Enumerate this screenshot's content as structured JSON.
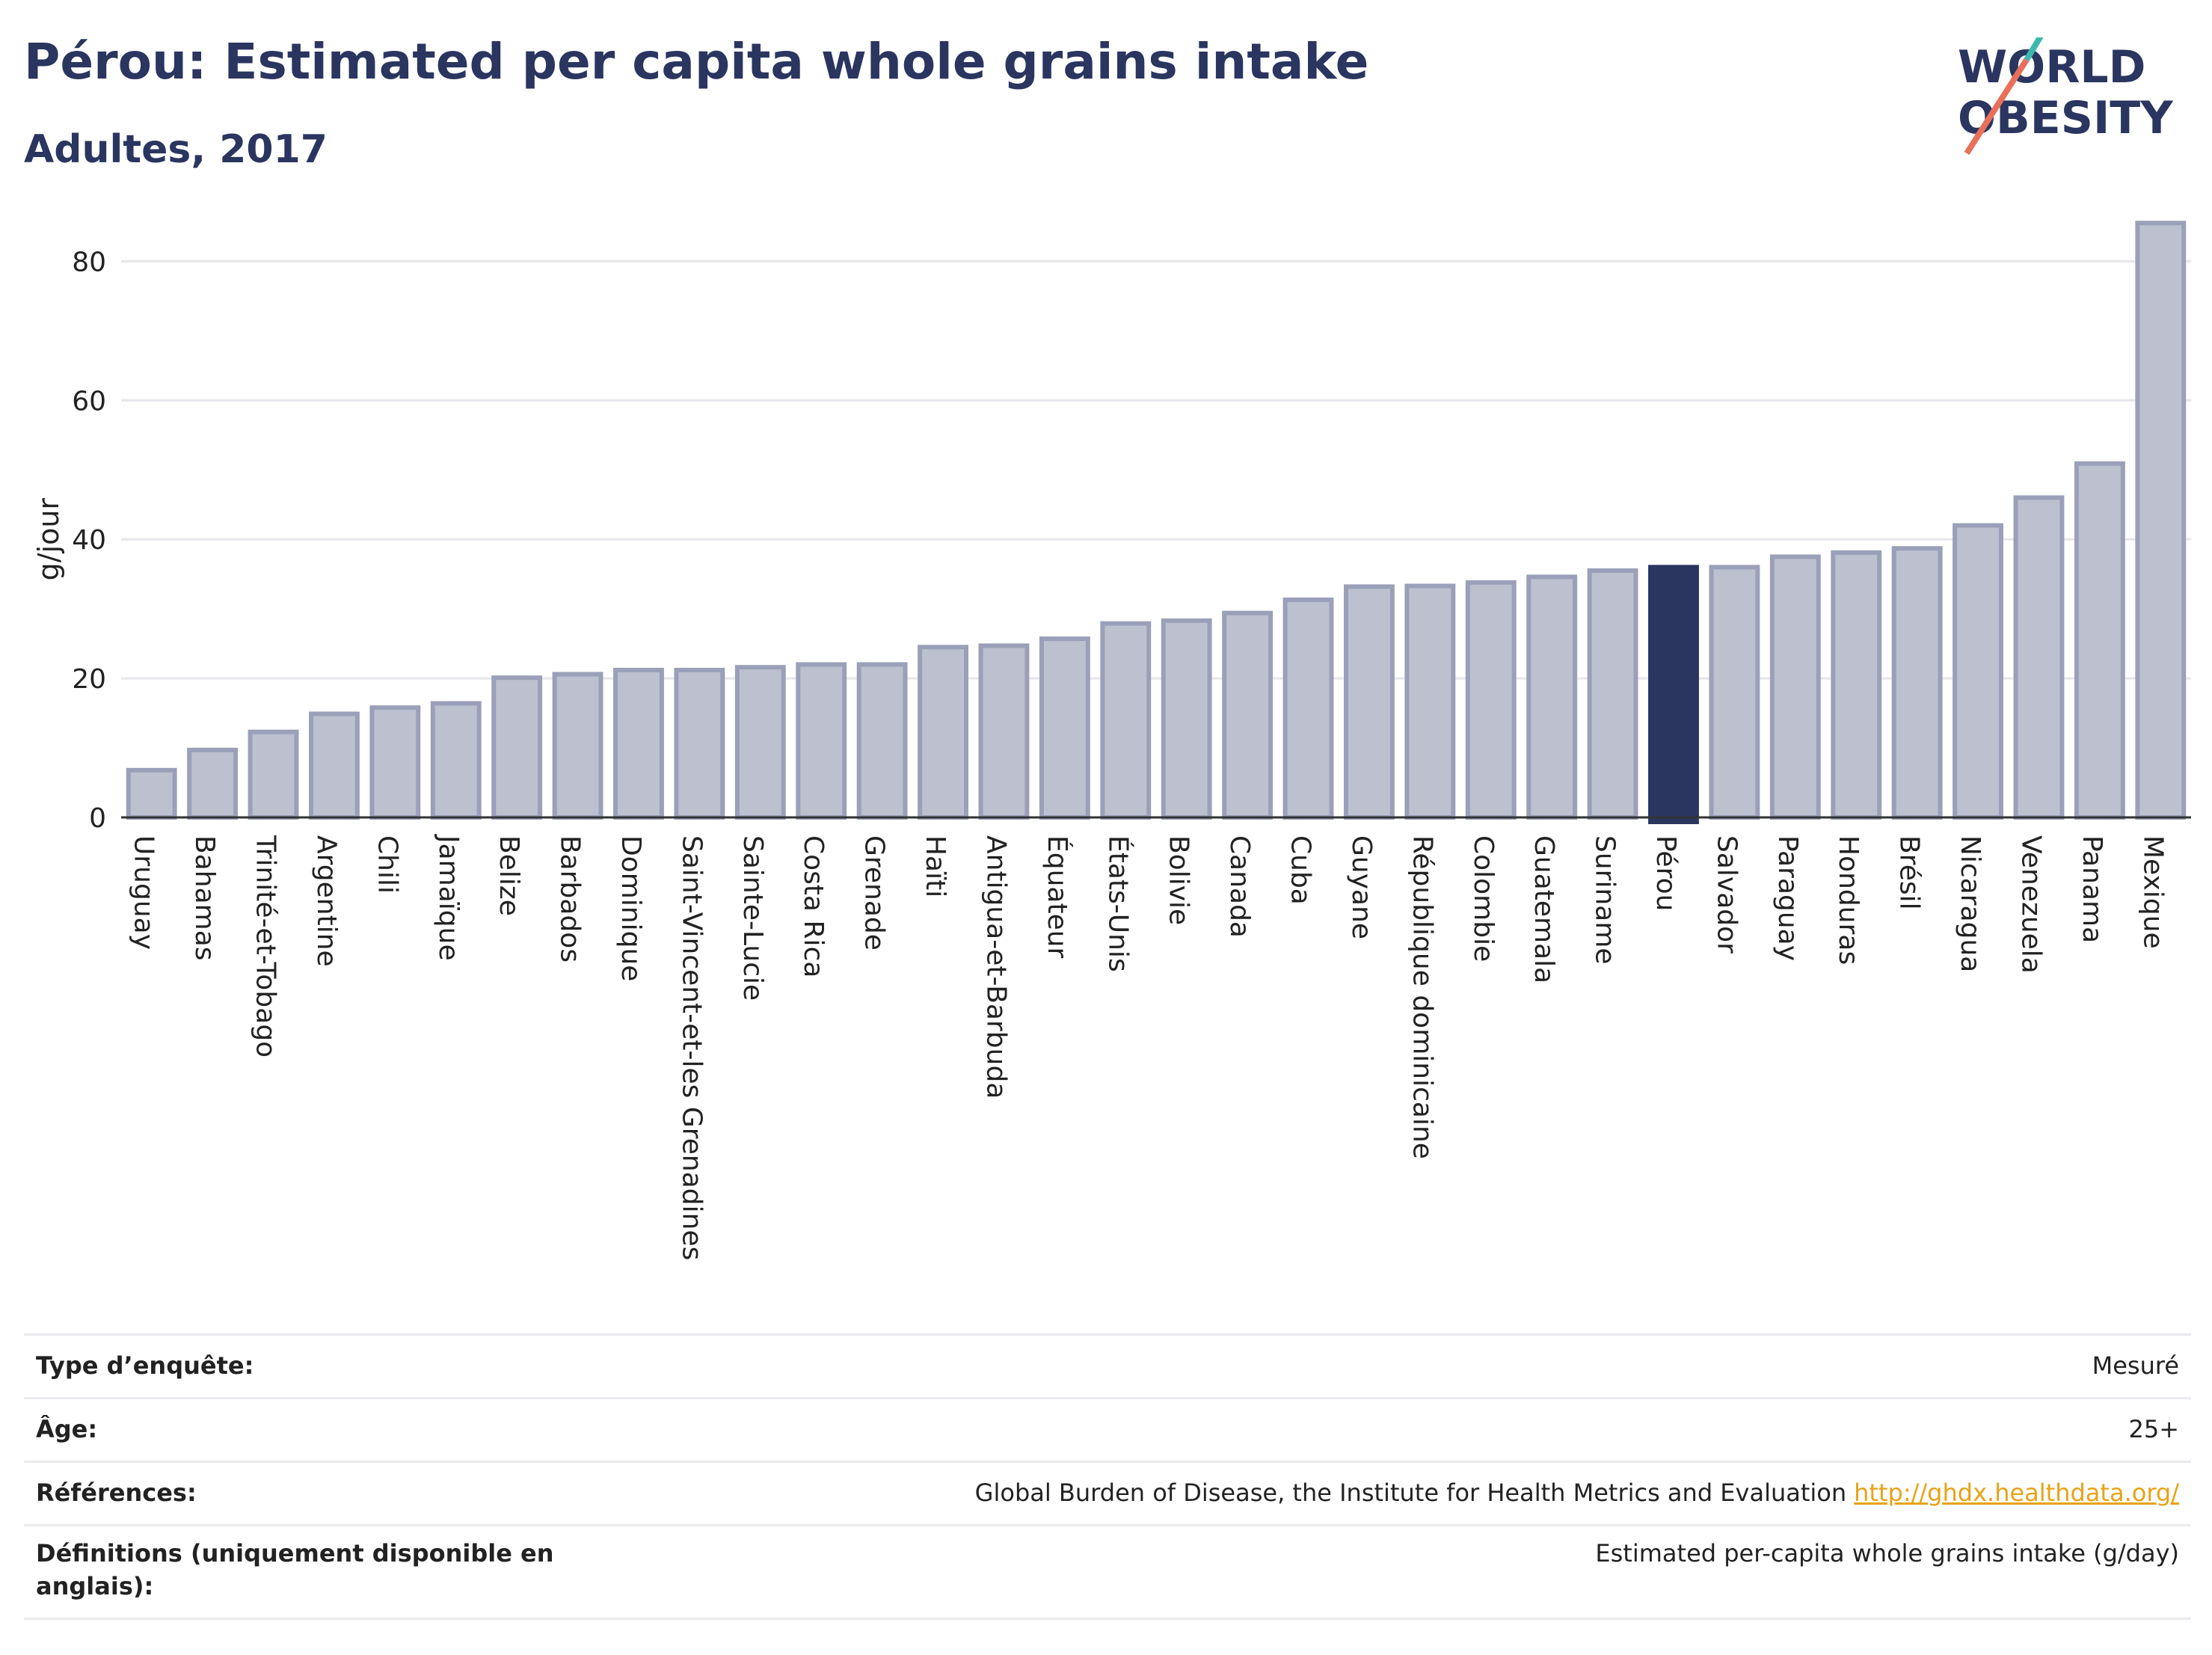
{
  "header": {
    "title": "Pérou: Estimated per capita whole grains intake",
    "subtitle": "Adultes, 2017"
  },
  "logo": {
    "line1": "WORLD",
    "line2": "OBESITY"
  },
  "colors": {
    "bar": "#bcc0cf",
    "bar_border": "#9aa0b8",
    "highlight": "#2a3560",
    "grid": "#e6e6ec"
  },
  "chart_data": {
    "type": "bar",
    "ylabel": "g/jour",
    "ylim": [
      0,
      88
    ],
    "yticks": [
      0,
      20,
      40,
      60,
      80
    ],
    "highlight": "Pérou",
    "categories": [
      "Uruguay",
      "Bahamas",
      "Trinité-et-Tobago",
      "Argentine",
      "Chili",
      "Jamaïque",
      "Belize",
      "Barbados",
      "Dominique",
      "Saint-Vincent-et-les Grenadines",
      "Sainte-Lucie",
      "Costa Rica",
      "Grenade",
      "Haïti",
      "Antigua-et-Barbuda",
      "Équateur",
      "États-Unis",
      "Bolivie",
      "Canada",
      "Cuba",
      "Guyane",
      "République dominicaine",
      "Colombie",
      "Guatemala",
      "Suriname",
      "Pérou",
      "Salvador",
      "Paraguay",
      "Honduras",
      "Brésil",
      "Nicaragua",
      "Venezuela",
      "Panama",
      "Mexique"
    ],
    "values": [
      6.8,
      9.7,
      12.3,
      14.9,
      15.8,
      16.4,
      20.1,
      20.6,
      21.2,
      21.2,
      21.6,
      22.0,
      22.0,
      24.5,
      24.7,
      25.7,
      27.9,
      28.3,
      29.4,
      31.3,
      33.2,
      33.3,
      33.8,
      34.6,
      35.5,
      36.0,
      36.0,
      37.5,
      38.1,
      38.7,
      42.0,
      46.0,
      50.9,
      85.5
    ]
  },
  "info": [
    {
      "label": "Type d’enquête:",
      "value": "Mesuré",
      "link": ""
    },
    {
      "label": "Âge:",
      "value": "25+",
      "link": ""
    },
    {
      "label": "Références:",
      "value": "Global Burden of Disease, the Institute for Health Metrics and Evaluation",
      "link": "http://ghdx.healthdata.org/"
    },
    {
      "label": "Définitions (uniquement disponible en anglais):",
      "value": "Estimated per-capita whole grains intake (g/day)",
      "link": ""
    }
  ]
}
